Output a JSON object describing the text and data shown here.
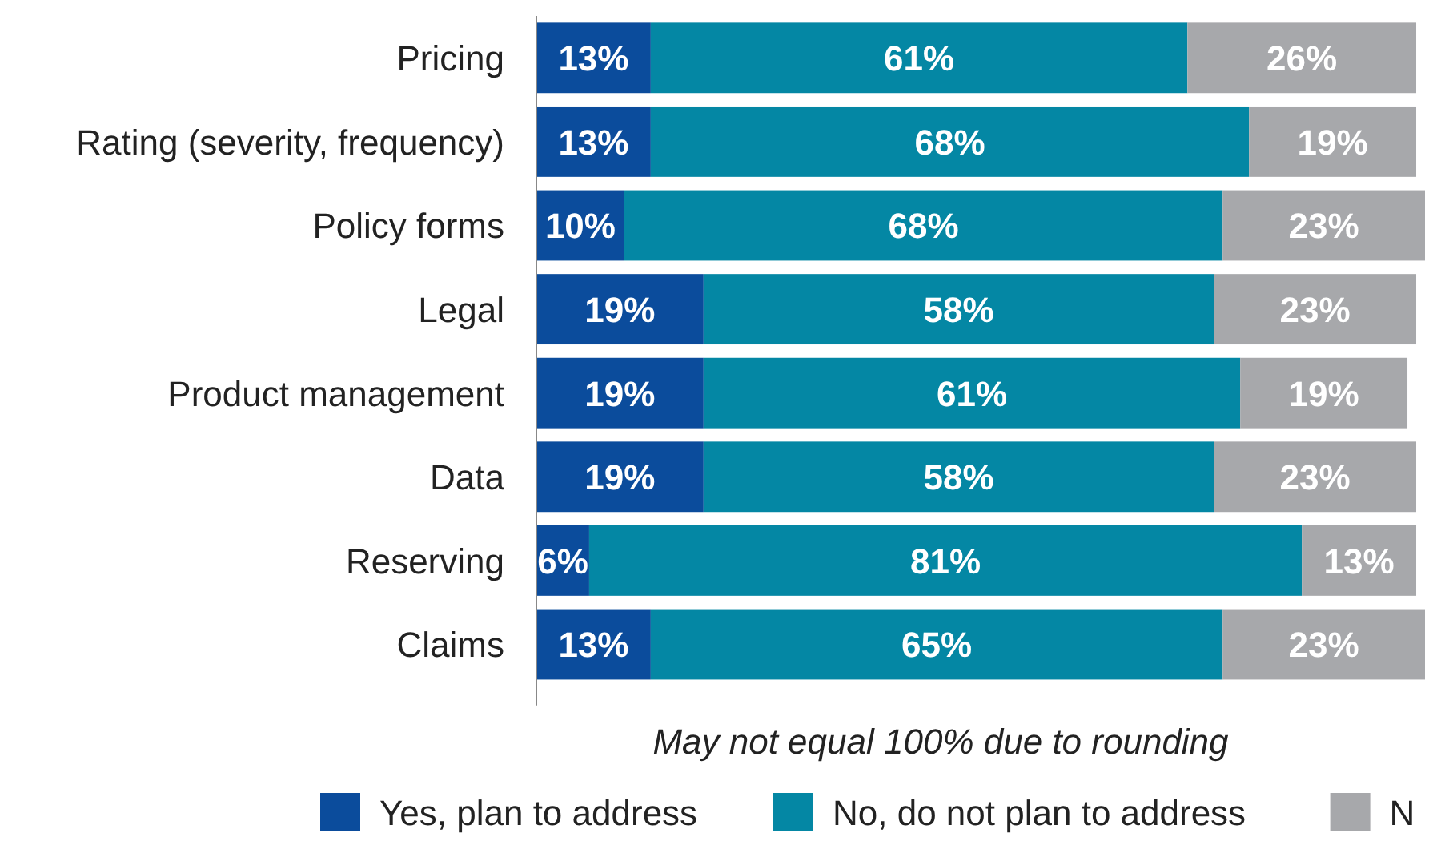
{
  "chart_data": {
    "type": "bar",
    "orientation": "horizontal",
    "stacked": true,
    "categories": [
      "Pricing",
      "Rating (severity, frequency)",
      "Policy forms",
      "Legal",
      "Product management",
      "Data",
      "Reserving",
      "Claims"
    ],
    "series": [
      {
        "name": "Yes, plan to address",
        "color": "#0b4c9c",
        "values": [
          13,
          13,
          10,
          19,
          19,
          19,
          6,
          13
        ],
        "value_labels": [
          "13%",
          "13%",
          "10%",
          "19%",
          "19%",
          "19%",
          "6%",
          "13%"
        ]
      },
      {
        "name": "No, do not plan to address",
        "color": "#0487a4",
        "values": [
          61,
          68,
          68,
          58,
          61,
          58,
          81,
          65
        ],
        "value_labels": [
          "61%",
          "68%",
          "68%",
          "58%",
          "61%",
          "58%",
          "81%",
          "65%"
        ]
      },
      {
        "name": "N",
        "color": "#a7a8ab",
        "values": [
          26,
          19,
          23,
          23,
          19,
          23,
          13,
          23
        ],
        "value_labels": [
          "26%",
          "19%",
          "23%",
          "23%",
          "19%",
          "23%",
          "13%",
          "23%"
        ]
      }
    ],
    "annotations": [
      "May not equal 100% due to rounding"
    ],
    "legend": "bottom"
  }
}
